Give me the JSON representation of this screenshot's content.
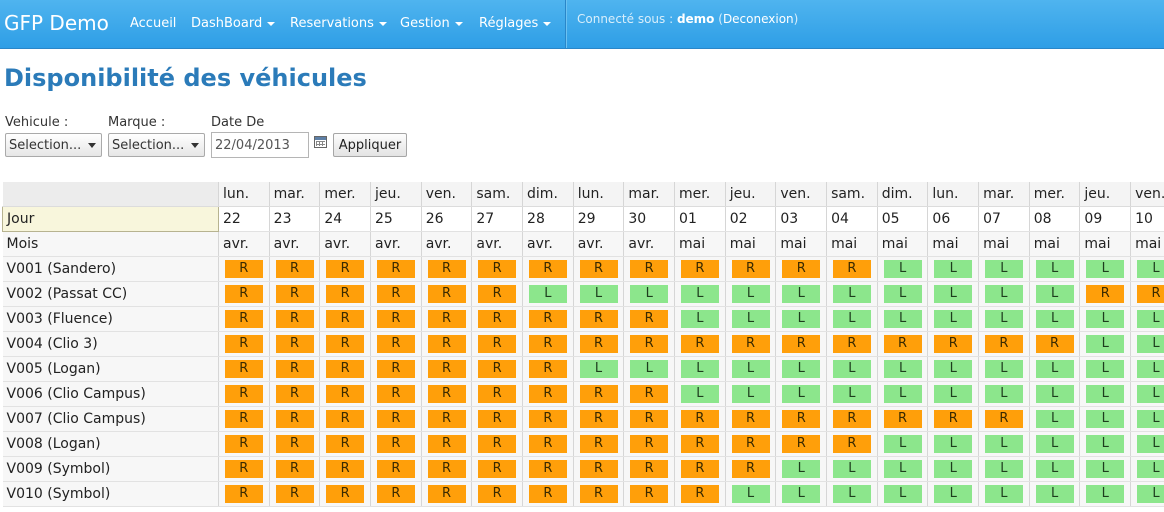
{
  "nav": {
    "brand": "GFP Demo",
    "items": [
      {
        "label": "Accueil",
        "caret": false
      },
      {
        "label": "DashBoard",
        "caret": true
      },
      {
        "label": "Reservations",
        "caret": true
      },
      {
        "label": "Gestion",
        "caret": true
      },
      {
        "label": "Réglages",
        "caret": true
      }
    ],
    "user_prefix": "Connecté sous :",
    "user_name": "demo",
    "logout_label": "Deconexion"
  },
  "page": {
    "title": "Disponibilité des véhicules"
  },
  "filters": {
    "vehicule_label": "Vehicule :",
    "vehicule_value": "Selection...",
    "marque_label": "Marque :",
    "marque_value": "Selection...",
    "date_label": "Date De",
    "date_value": "22/04/2013",
    "apply_label": "Appliquer"
  },
  "grid": {
    "jour_label": "Jour",
    "mois_label": "Mois",
    "weekdays": [
      "lun.",
      "mar.",
      "mer.",
      "jeu.",
      "ven.",
      "sam.",
      "dim.",
      "lun.",
      "mar.",
      "mer.",
      "jeu.",
      "ven.",
      "sam.",
      "dim.",
      "lun.",
      "mar.",
      "mer.",
      "jeu.",
      "ven."
    ],
    "days": [
      "22",
      "23",
      "24",
      "25",
      "26",
      "27",
      "28",
      "29",
      "30",
      "01",
      "02",
      "03",
      "04",
      "05",
      "06",
      "07",
      "08",
      "09",
      "10"
    ],
    "months": [
      "avr.",
      "avr.",
      "avr.",
      "avr.",
      "avr.",
      "avr.",
      "avr.",
      "avr.",
      "avr.",
      "mai",
      "mai",
      "mai",
      "mai",
      "mai",
      "mai",
      "mai",
      "mai",
      "mai",
      "mai"
    ],
    "vehicles": [
      {
        "name": "V001 (Sandero)",
        "status": [
          "R",
          "R",
          "R",
          "R",
          "R",
          "R",
          "R",
          "R",
          "R",
          "R",
          "R",
          "R",
          "R",
          "L",
          "L",
          "L",
          "L",
          "L",
          "L"
        ]
      },
      {
        "name": "V002 (Passat CC)",
        "status": [
          "R",
          "R",
          "R",
          "R",
          "R",
          "R",
          "L",
          "L",
          "L",
          "L",
          "L",
          "L",
          "L",
          "L",
          "L",
          "L",
          "L",
          "R",
          "R"
        ]
      },
      {
        "name": "V003 (Fluence)",
        "status": [
          "R",
          "R",
          "R",
          "R",
          "R",
          "R",
          "R",
          "R",
          "R",
          "L",
          "L",
          "L",
          "L",
          "L",
          "L",
          "L",
          "L",
          "L",
          "L"
        ]
      },
      {
        "name": "V004 (Clio 3)",
        "status": [
          "R",
          "R",
          "R",
          "R",
          "R",
          "R",
          "R",
          "R",
          "R",
          "R",
          "R",
          "R",
          "R",
          "R",
          "R",
          "R",
          "R",
          "L",
          "L"
        ]
      },
      {
        "name": "V005 (Logan)",
        "status": [
          "R",
          "R",
          "R",
          "R",
          "R",
          "R",
          "R",
          "L",
          "L",
          "L",
          "L",
          "L",
          "L",
          "L",
          "L",
          "L",
          "L",
          "L",
          "L"
        ]
      },
      {
        "name": "V006 (Clio Campus)",
        "status": [
          "R",
          "R",
          "R",
          "R",
          "R",
          "R",
          "R",
          "R",
          "R",
          "L",
          "L",
          "L",
          "L",
          "L",
          "L",
          "L",
          "L",
          "L",
          "L"
        ]
      },
      {
        "name": "V007 (Clio Campus)",
        "status": [
          "R",
          "R",
          "R",
          "R",
          "R",
          "R",
          "R",
          "R",
          "R",
          "R",
          "R",
          "R",
          "R",
          "R",
          "R",
          "R",
          "L",
          "L",
          "L"
        ]
      },
      {
        "name": "V008 (Logan)",
        "status": [
          "R",
          "R",
          "R",
          "R",
          "R",
          "R",
          "R",
          "R",
          "R",
          "R",
          "R",
          "R",
          "R",
          "L",
          "L",
          "L",
          "L",
          "L",
          "L"
        ]
      },
      {
        "name": "V009 (Symbol)",
        "status": [
          "R",
          "R",
          "R",
          "R",
          "R",
          "R",
          "R",
          "R",
          "R",
          "R",
          "R",
          "L",
          "L",
          "L",
          "L",
          "L",
          "L",
          "L",
          "L"
        ]
      },
      {
        "name": "V010 (Symbol)",
        "status": [
          "R",
          "R",
          "R",
          "R",
          "R",
          "R",
          "R",
          "R",
          "R",
          "R",
          "L",
          "L",
          "L",
          "L",
          "L",
          "L",
          "L",
          "L",
          "L"
        ]
      }
    ]
  },
  "colors": {
    "reserved": "#ff9f0a",
    "free": "#8ce68c",
    "nav_blue": "#2e9ee6",
    "title_blue": "#2b7bb9"
  }
}
